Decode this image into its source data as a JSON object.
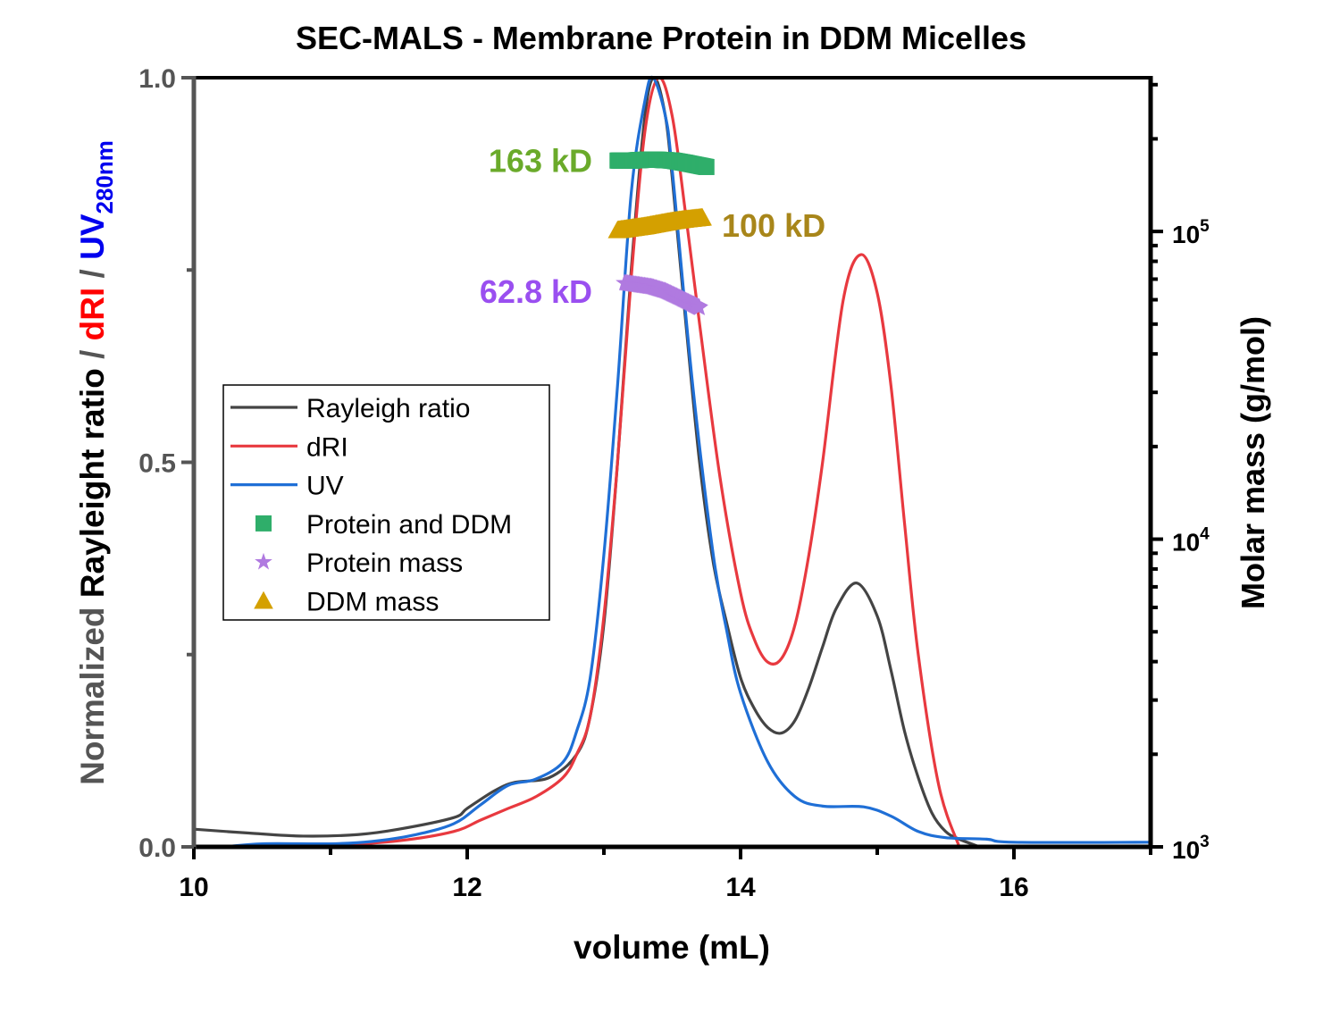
{
  "chart_data": {
    "type": "line",
    "title": "SEC-MALS - Membrane Protein in DDM Micelles",
    "xlabel": "volume (mL)",
    "ylabel_parts": [
      {
        "text": "Normalized ",
        "color": "#555555"
      },
      {
        "text": "Rayleight ratio",
        "color": "#000000"
      },
      {
        "text": " / ",
        "color": "#555555"
      },
      {
        "text": "dRI",
        "color": "#ff0000"
      },
      {
        "text": " / ",
        "color": "#555555"
      },
      {
        "text": "UV",
        "color": "#0000ee"
      },
      {
        "text": "280nm",
        "color": "#0000ee",
        "subscript": true
      }
    ],
    "y2label": "Molar mass (g/mol)",
    "xlim": [
      10,
      17
    ],
    "ylim": [
      0,
      1.0
    ],
    "y2lim": [
      1000,
      316000
    ],
    "y2scale": "log",
    "xticks": [
      10,
      12,
      14,
      16
    ],
    "xtick_labels": [
      "10",
      "12",
      "14",
      "16"
    ],
    "yticks": [
      0,
      0.5,
      1.0
    ],
    "ytick_labels": [
      "0.0",
      "0.5",
      "1.0"
    ],
    "y2tick_labels": [
      {
        "value": 1000,
        "base": "10",
        "exp": "3"
      },
      {
        "value": 10000,
        "base": "10",
        "exp": "4"
      },
      {
        "value": 100000,
        "base": "10",
        "exp": "5"
      }
    ],
    "grid": false,
    "legend_placement": "center-left",
    "series": [
      {
        "name": "Rayleigh ratio",
        "axis": "left",
        "kind": "line",
        "color": "#444444",
        "x": [
          10,
          10.4,
          10.8,
          11.2,
          11.5,
          11.9,
          12.0,
          12.2,
          12.35,
          12.6,
          12.8,
          12.9,
          13.0,
          13.1,
          13.2,
          13.3,
          13.37,
          13.45,
          13.5,
          13.6,
          13.7,
          13.8,
          13.9,
          14.0,
          14.1,
          14.2,
          14.3,
          14.4,
          14.5,
          14.6,
          14.7,
          14.85,
          15.0,
          15.1,
          15.2,
          15.3,
          15.4,
          15.5,
          15.6,
          15.75
        ],
        "y": [
          0.023,
          0.018,
          0.014,
          0.016,
          0.023,
          0.038,
          0.05,
          0.073,
          0.084,
          0.09,
          0.12,
          0.17,
          0.29,
          0.5,
          0.75,
          0.95,
          1.0,
          0.95,
          0.87,
          0.68,
          0.5,
          0.37,
          0.29,
          0.22,
          0.18,
          0.155,
          0.148,
          0.165,
          0.207,
          0.26,
          0.31,
          0.343,
          0.3,
          0.23,
          0.15,
          0.09,
          0.044,
          0.02,
          0.01,
          0.0
        ]
      },
      {
        "name": "dRI",
        "axis": "left",
        "kind": "line",
        "color": "#e8393f",
        "x": [
          10,
          10.5,
          11.0,
          11.5,
          11.9,
          12.1,
          12.3,
          12.5,
          12.7,
          12.8,
          12.9,
          13.0,
          13.1,
          13.2,
          13.3,
          13.4,
          13.5,
          13.6,
          13.7,
          13.85,
          14.0,
          14.1,
          14.2,
          14.3,
          14.4,
          14.5,
          14.6,
          14.75,
          14.88,
          15.0,
          15.1,
          15.2,
          15.3,
          15.45,
          15.6
        ],
        "y": [
          0.0,
          0.001,
          0.002,
          0.008,
          0.02,
          0.035,
          0.05,
          0.065,
          0.09,
          0.12,
          0.17,
          0.3,
          0.5,
          0.74,
          0.93,
          1.0,
          0.95,
          0.82,
          0.68,
          0.48,
          0.33,
          0.27,
          0.24,
          0.245,
          0.29,
          0.38,
          0.5,
          0.71,
          0.77,
          0.72,
          0.6,
          0.42,
          0.25,
          0.08,
          0.0
        ]
      },
      {
        "name": "UV",
        "axis": "left",
        "kind": "line",
        "color": "#1f6fd6",
        "x": [
          10,
          10.2,
          10.5,
          11.0,
          11.3,
          11.6,
          11.9,
          12.1,
          12.3,
          12.5,
          12.7,
          12.8,
          12.9,
          13.0,
          13.1,
          13.2,
          13.3,
          13.36,
          13.45,
          13.5,
          13.65,
          13.8,
          13.9,
          14.0,
          14.2,
          14.4,
          14.6,
          14.9,
          15.1,
          15.3,
          15.5,
          15.8,
          16.0,
          17.0
        ],
        "y": [
          0.0,
          0.0,
          0.004,
          0.004,
          0.007,
          0.015,
          0.03,
          0.055,
          0.08,
          0.088,
          0.11,
          0.15,
          0.22,
          0.38,
          0.6,
          0.85,
          0.97,
          1.0,
          0.95,
          0.88,
          0.6,
          0.38,
          0.28,
          0.2,
          0.11,
          0.065,
          0.053,
          0.052,
          0.04,
          0.02,
          0.012,
          0.01,
          0.006,
          0.006
        ]
      },
      {
        "name": "Protein and DDM",
        "axis": "right",
        "kind": "marker",
        "marker": "square",
        "color": "#2fae6a",
        "x": [
          13.1,
          13.2,
          13.3,
          13.4,
          13.5,
          13.6,
          13.75
        ],
        "y": [
          170000,
          170000,
          171000,
          171000,
          170000,
          167000,
          162000
        ]
      },
      {
        "name": "Protein mass",
        "axis": "right",
        "kind": "marker",
        "marker": "star",
        "color": "#b07ae0",
        "x": [
          13.15,
          13.25,
          13.35,
          13.45,
          13.55,
          13.65,
          13.7
        ],
        "y": [
          68000,
          67000,
          66000,
          64000,
          61000,
          58000,
          56500
        ]
      },
      {
        "name": "DDM mass",
        "axis": "right",
        "kind": "marker",
        "marker": "triangle",
        "color": "#d4a000",
        "x": [
          13.1,
          13.2,
          13.3,
          13.4,
          13.5,
          13.6,
          13.72
        ],
        "y": [
          101000,
          102500,
          104000,
          106000,
          108000,
          109500,
          111000
        ]
      }
    ],
    "annotations": [
      {
        "text": "163 kD",
        "color": "#6aaa2a",
        "x": 12.6,
        "y": 170000
      },
      {
        "text": "100 kD",
        "color": "#a8861a",
        "x": 13.85,
        "y": 105000
      },
      {
        "text": "62.8 kD",
        "color": "#9a4ff0",
        "x": 12.6,
        "y": 64000
      }
    ]
  }
}
